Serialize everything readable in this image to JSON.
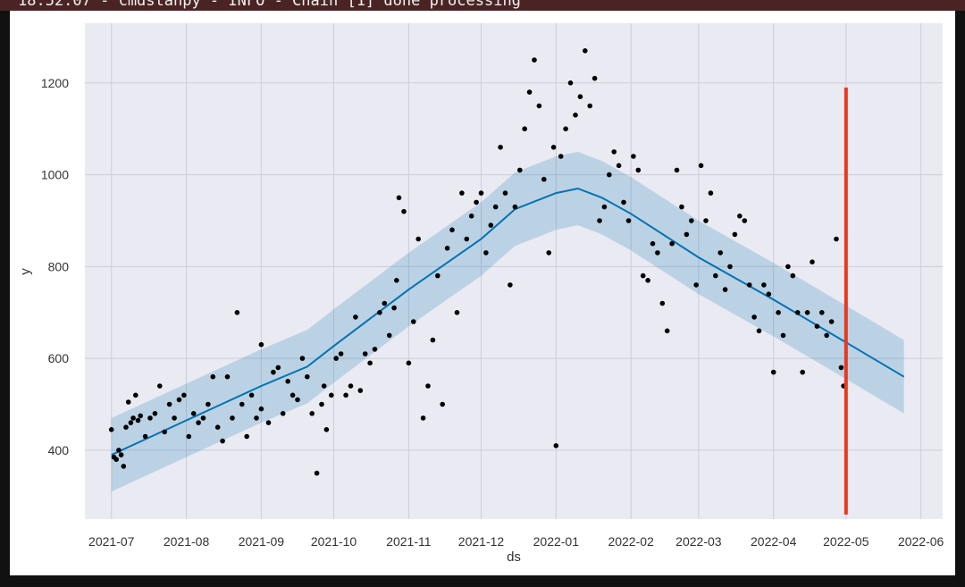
{
  "log_line": "18:52:07 - cmdstanpy - INFO - Chain [1] done processing",
  "colors": {
    "plot_background": "#eaeaf2",
    "points": "#000000",
    "forecast_line": "#0072b2",
    "uncertainty_band": "#0072b2",
    "vertical_marker": "#e53a20"
  },
  "chart_data": {
    "type": "scatter",
    "xlabel": "ds",
    "ylabel": "y",
    "x_ticks": [
      "2021-07",
      "2021-08",
      "2021-09",
      "2021-10",
      "2021-11",
      "2021-12",
      "2022-01",
      "2022-02",
      "2022-03",
      "2022-04",
      "2022-05",
      "2022-06"
    ],
    "y_ticks": [
      400,
      600,
      800,
      1000,
      1200
    ],
    "xlim": [
      "2021-06-20",
      "2022-06-10"
    ],
    "ylim": [
      250,
      1330
    ],
    "grid": true,
    "vertical_line": {
      "x": "2022-05-01",
      "y_from": 260,
      "y_to": 1190
    },
    "forecast": {
      "x": [
        "2021-07-01",
        "2021-08-01",
        "2021-09-01",
        "2021-09-20",
        "2021-10-01",
        "2021-11-01",
        "2021-12-01",
        "2021-12-15",
        "2022-01-01",
        "2022-01-10",
        "2022-01-20",
        "2022-02-01",
        "2022-03-01",
        "2022-04-01",
        "2022-05-01",
        "2022-05-25"
      ],
      "yhat": [
        390,
        465,
        540,
        582,
        627,
        750,
        860,
        925,
        960,
        970,
        950,
        915,
        820,
        728,
        635,
        560
      ],
      "lower": [
        310,
        385,
        460,
        502,
        547,
        670,
        780,
        845,
        880,
        890,
        870,
        835,
        740,
        648,
        555,
        480
      ],
      "upper": [
        470,
        545,
        620,
        662,
        707,
        830,
        940,
        1005,
        1040,
        1050,
        1030,
        995,
        900,
        808,
        715,
        640
      ]
    },
    "actual": {
      "x": [
        "2021-07-01",
        "2021-07-02",
        "2021-07-03",
        "2021-07-04",
        "2021-07-05",
        "2021-07-06",
        "2021-07-07",
        "2021-07-08",
        "2021-07-09",
        "2021-07-10",
        "2021-07-11",
        "2021-07-12",
        "2021-07-13",
        "2021-07-15",
        "2021-07-17",
        "2021-07-19",
        "2021-07-21",
        "2021-07-23",
        "2021-07-25",
        "2021-07-27",
        "2021-07-29",
        "2021-07-31",
        "2021-08-02",
        "2021-08-04",
        "2021-08-06",
        "2021-08-08",
        "2021-08-10",
        "2021-08-12",
        "2021-08-14",
        "2021-08-16",
        "2021-08-18",
        "2021-08-20",
        "2021-08-22",
        "2021-08-24",
        "2021-08-26",
        "2021-08-28",
        "2021-08-30",
        "2021-09-01",
        "2021-09-01",
        "2021-09-04",
        "2021-09-06",
        "2021-09-08",
        "2021-09-10",
        "2021-09-12",
        "2021-09-14",
        "2021-09-16",
        "2021-09-18",
        "2021-09-20",
        "2021-09-22",
        "2021-09-24",
        "2021-09-26",
        "2021-09-27",
        "2021-09-28",
        "2021-09-30",
        "2021-10-02",
        "2021-10-04",
        "2021-10-06",
        "2021-10-08",
        "2021-10-10",
        "2021-10-12",
        "2021-10-14",
        "2021-10-16",
        "2021-10-18",
        "2021-10-20",
        "2021-10-22",
        "2021-10-24",
        "2021-10-26",
        "2021-10-27",
        "2021-10-28",
        "2021-10-30",
        "2021-11-01",
        "2021-11-03",
        "2021-11-05",
        "2021-11-07",
        "2021-11-09",
        "2021-11-11",
        "2021-11-13",
        "2021-11-15",
        "2021-11-17",
        "2021-11-19",
        "2021-11-21",
        "2021-11-23",
        "2021-11-25",
        "2021-11-27",
        "2021-11-29",
        "2021-12-01",
        "2021-12-03",
        "2021-12-05",
        "2021-12-07",
        "2021-12-09",
        "2021-12-11",
        "2021-12-13",
        "2021-12-15",
        "2021-12-17",
        "2021-12-19",
        "2021-12-21",
        "2021-12-23",
        "2021-12-25",
        "2021-12-27",
        "2021-12-29",
        "2021-12-31",
        "2022-01-01",
        "2022-01-03",
        "2022-01-05",
        "2022-01-07",
        "2022-01-09",
        "2022-01-11",
        "2022-01-13",
        "2022-01-15",
        "2022-01-17",
        "2022-01-19",
        "2022-01-21",
        "2022-01-23",
        "2022-01-25",
        "2022-01-27",
        "2022-01-29",
        "2022-01-31",
        "2022-02-02",
        "2022-02-04",
        "2022-02-06",
        "2022-02-08",
        "2022-02-10",
        "2022-02-12",
        "2022-02-14",
        "2022-02-16",
        "2022-02-18",
        "2022-02-20",
        "2022-02-22",
        "2022-02-24",
        "2022-02-26",
        "2022-02-28",
        "2022-03-02",
        "2022-03-04",
        "2022-03-06",
        "2022-03-08",
        "2022-03-10",
        "2022-03-12",
        "2022-03-14",
        "2022-03-16",
        "2022-03-18",
        "2022-03-20",
        "2022-03-22",
        "2022-03-24",
        "2022-03-26",
        "2022-03-28",
        "2022-03-30",
        "2022-04-01",
        "2022-04-03",
        "2022-04-05",
        "2022-04-07",
        "2022-04-09",
        "2022-04-11",
        "2022-04-13",
        "2022-04-15",
        "2022-04-17",
        "2022-04-19",
        "2022-04-21",
        "2022-04-23",
        "2022-04-25",
        "2022-04-27",
        "2022-04-29",
        "2022-04-30"
      ],
      "y": [
        445,
        385,
        380,
        400,
        390,
        365,
        450,
        505,
        460,
        470,
        520,
        465,
        475,
        430,
        470,
        480,
        540,
        440,
        500,
        470,
        510,
        520,
        430,
        480,
        460,
        470,
        500,
        560,
        450,
        420,
        560,
        470,
        700,
        500,
        430,
        520,
        470,
        490,
        630,
        460,
        570,
        580,
        480,
        550,
        520,
        510,
        600,
        560,
        480,
        350,
        500,
        540,
        445,
        520,
        600,
        610,
        520,
        540,
        690,
        530,
        610,
        590,
        620,
        700,
        720,
        650,
        710,
        770,
        950,
        920,
        590,
        680,
        860,
        470,
        540,
        640,
        780,
        500,
        840,
        880,
        700,
        960,
        860,
        910,
        940,
        960,
        830,
        890,
        930,
        1060,
        960,
        760,
        930,
        1010,
        1100,
        1180,
        1250,
        1150,
        990,
        830,
        1060,
        410,
        1040,
        1100,
        1200,
        1130,
        1170,
        1270,
        1150,
        1210,
        900,
        930,
        1000,
        1050,
        1020,
        940,
        900,
        1040,
        1010,
        780,
        770,
        850,
        830,
        720,
        660,
        850,
        1010,
        930,
        870,
        900,
        760,
        1020,
        900,
        960,
        780,
        830,
        750,
        800,
        870,
        910,
        900,
        760,
        690,
        660,
        760,
        740,
        570,
        700,
        650,
        800,
        780,
        700,
        570,
        700,
        810,
        670,
        700,
        650,
        680,
        860,
        580,
        540
      ]
    }
  }
}
